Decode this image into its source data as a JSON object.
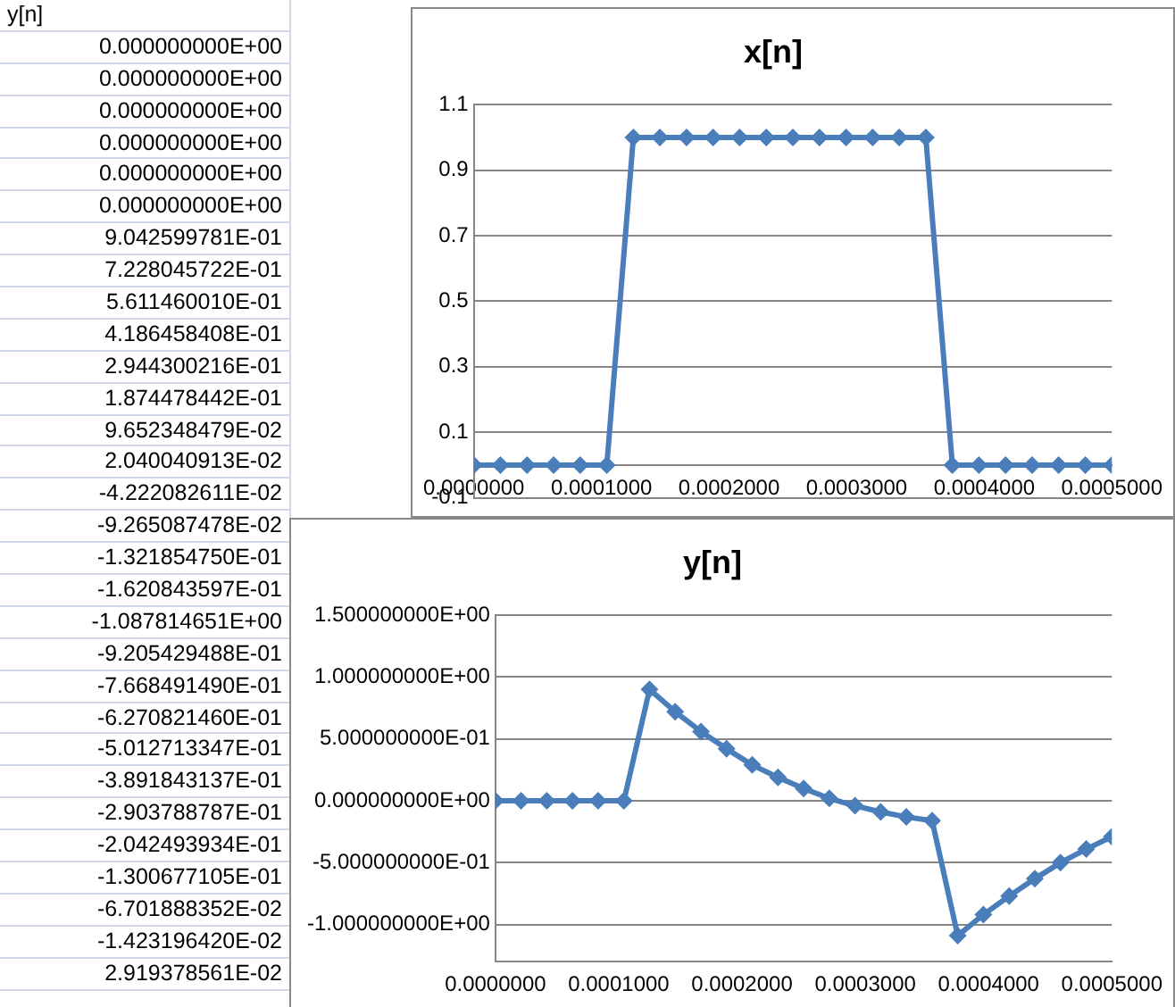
{
  "chart_data": [
    {
      "type": "other",
      "title": "y[n]",
      "annotations": [
        "0.000000000E+00",
        "0.000000000E+00",
        "0.000000000E+00",
        "0.000000000E+00",
        "0.000000000E+00",
        "0.000000000E+00",
        "9.042599781E-01",
        "7.228045722E-01",
        "5.611460010E-01",
        "4.186458408E-01",
        "2.944300216E-01",
        "1.874478442E-01",
        "9.652348479E-02",
        "2.040040913E-02",
        "-4.222082611E-02",
        "-9.265087478E-02",
        "-1.321854750E-01",
        "-1.620843597E-01",
        "-1.087814651E+00",
        "-9.205429488E-01",
        "-7.668491490E-01",
        "-6.270821460E-01",
        "-5.012713347E-01",
        "-3.891843137E-01",
        "-2.903788787E-01",
        "-2.042493934E-01",
        "-1.300677105E-01",
        "-6.701888352E-02",
        "-1.423196420E-02",
        "2.919378561E-02"
      ]
    },
    {
      "type": "line",
      "title": "x[n]",
      "marker": "diamond",
      "grid": "y",
      "legend": false,
      "x": [
        0,
        2.08e-05,
        4.17e-05,
        6.25e-05,
        8.33e-05,
        0.0001042,
        0.000125,
        0.0001458,
        0.0001667,
        0.0001875,
        0.0002083,
        0.0002292,
        0.00025,
        0.0002708,
        0.0002917,
        0.0003125,
        0.0003333,
        0.0003542,
        0.000375,
        0.0003958,
        0.0004167,
        0.0004375,
        0.0004583,
        0.0004792,
        0.0005
      ],
      "series": [
        {
          "color": "#4a7ebb",
          "values": [
            0,
            0,
            0,
            0,
            0,
            0,
            1,
            1,
            1,
            1,
            1,
            1,
            1,
            1,
            1,
            1,
            1,
            1,
            0,
            0,
            0,
            0,
            0,
            0,
            0
          ]
        }
      ],
      "xlim": [
        0,
        0.0005
      ],
      "xticks": [
        {
          "value": 0,
          "label": "0.0000000"
        },
        {
          "value": 0.0001,
          "label": "0.0001000"
        },
        {
          "value": 0.0002,
          "label": "0.0002000"
        },
        {
          "value": 0.0003,
          "label": "0.0003000"
        },
        {
          "value": 0.0004,
          "label": "0.0004000"
        },
        {
          "value": 0.0005,
          "label": "0.0005000"
        }
      ],
      "ylim": [
        -0.1,
        1.1
      ],
      "yticks": [
        -0.1,
        0.1,
        0.3,
        0.5,
        0.7,
        0.9,
        1.1
      ]
    },
    {
      "type": "line",
      "title": "y[n]",
      "marker": "diamond",
      "grid": "y",
      "legend": false,
      "x": [
        0,
        2.08e-05,
        4.17e-05,
        6.25e-05,
        8.33e-05,
        0.0001042,
        0.000125,
        0.0001458,
        0.0001667,
        0.0001875,
        0.0002083,
        0.0002292,
        0.00025,
        0.0002708,
        0.0002917,
        0.0003125,
        0.0003333,
        0.0003542,
        0.000375,
        0.0003958,
        0.0004167,
        0.0004375,
        0.0004583,
        0.0004792,
        0.0005
      ],
      "series": [
        {
          "color": "#4a7ebb",
          "values": [
            0,
            0,
            0,
            0,
            0,
            0,
            0.9,
            0.72,
            0.56,
            0.42,
            0.29,
            0.19,
            0.1,
            0.02,
            -0.04,
            -0.09,
            -0.13,
            -0.16,
            -1.09,
            -0.92,
            -0.77,
            -0.63,
            -0.5,
            -0.39,
            -0.29
          ]
        }
      ],
      "xlim": [
        0,
        0.0005
      ],
      "xticks": [
        {
          "value": 0,
          "label": "0.0000000"
        },
        {
          "value": 0.0001,
          "label": "0.0001000"
        },
        {
          "value": 0.0002,
          "label": "0.0002000"
        },
        {
          "value": 0.0003,
          "label": "0.0003000"
        },
        {
          "value": 0.0004,
          "label": "0.0004000"
        },
        {
          "value": 0.0005,
          "label": "0.0005000"
        }
      ],
      "ylim": [
        -1.3,
        1.5
      ],
      "yticks": [
        {
          "value": -1,
          "label": "-1.000000000E+00"
        },
        {
          "value": -0.5,
          "label": "-5.000000000E-01"
        },
        {
          "value": 0,
          "label": "0.000000000E+00"
        },
        {
          "value": 0.5,
          "label": "5.000000000E-01"
        },
        {
          "value": 1,
          "label": "1.000000000E+00"
        },
        {
          "value": 1.5,
          "label": "1.500000000E+00"
        }
      ]
    }
  ]
}
